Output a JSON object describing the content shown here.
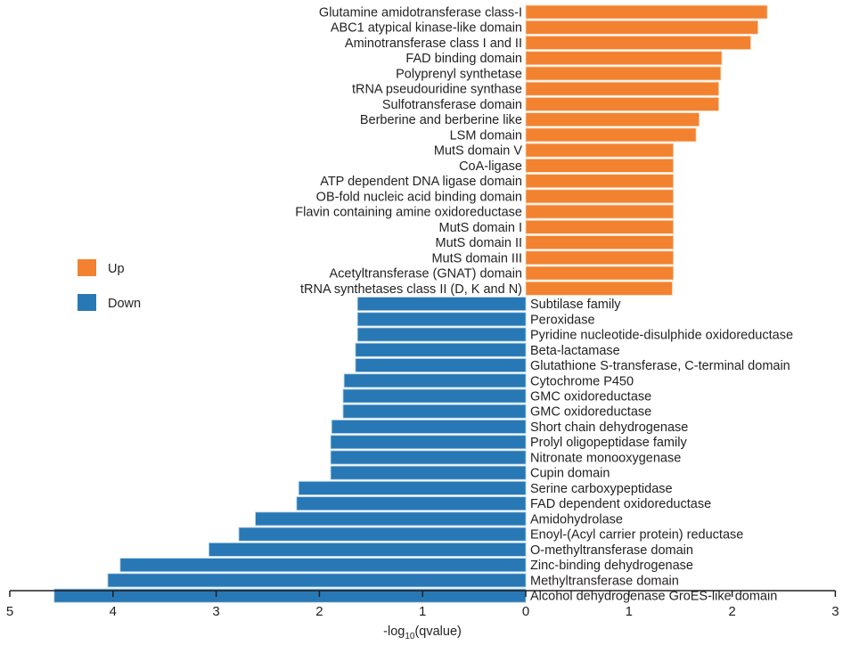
{
  "chart_data": {
    "type": "bar",
    "orientation": "horizontal-diverging",
    "title": "",
    "xlabel": "-log10(qvalue)",
    "xlabel_parts": {
      "prefix": "-log",
      "subscript": "10",
      "suffix": "(qvalue)"
    },
    "ylabel": "",
    "xlim_down": [
      5,
      0
    ],
    "xlim_up": [
      0,
      3
    ],
    "x_ticks_down": [
      "5",
      "4",
      "3",
      "2",
      "1",
      "0"
    ],
    "x_ticks_up": [
      "1",
      "2",
      "3"
    ],
    "grid": false,
    "legend": {
      "placement": "left-middle",
      "entries": [
        {
          "name": "Up",
          "color": "#F28230"
        },
        {
          "name": "Down",
          "color": "#2878B5"
        }
      ]
    },
    "series": [
      {
        "name": "Up",
        "color": "#F28230",
        "categories": [
          "Glutamine amidotransferase class-I",
          "ABC1 atypical kinase-like domain",
          "Aminotransferase class I and II",
          "FAD binding domain",
          "Polyprenyl synthetase",
          "tRNA pseudouridine synthase",
          "Sulfotransferase domain",
          "Berberine and berberine like",
          "LSM domain",
          "MutS domain V",
          "CoA-ligase",
          "ATP dependent DNA ligase domain",
          "OB-fold nucleic acid binding domain",
          "Flavin containing amine oxidoreductase",
          "MutS domain I",
          "MutS domain II",
          "MutS domain III",
          "Acetyltransferase (GNAT) domain",
          "tRNA synthetases class II (D, K and N)"
        ],
        "values": [
          2.34,
          2.25,
          2.18,
          1.9,
          1.89,
          1.87,
          1.87,
          1.68,
          1.65,
          1.43,
          1.43,
          1.43,
          1.43,
          1.43,
          1.43,
          1.43,
          1.43,
          1.43,
          1.42
        ]
      },
      {
        "name": "Down",
        "color": "#2878B5",
        "categories": [
          "Subtilase family",
          "Peroxidase",
          "Pyridine nucleotide-disulphide oxidoreductase",
          "Beta-lactamase",
          "Glutathione S-transferase, C-terminal domain",
          "Cytochrome P450",
          "GMC oxidoreductase",
          "GMC oxidoreductase",
          "Short chain dehydrogenase",
          "Prolyl oligopeptidase family",
          "Nitronate monooxygenase",
          "Cupin domain",
          "Serine carboxypeptidase",
          "FAD dependent oxidoreductase",
          "Amidohydrolase",
          "Enoyl-(Acyl carrier protein) reductase",
          "O-methyltransferase domain",
          "Zinc-binding dehydrogenase",
          "Methyltransferase domain",
          "Alcohol dehydrogenase GroES-like domain"
        ],
        "values": [
          1.63,
          1.63,
          1.63,
          1.65,
          1.65,
          1.76,
          1.77,
          1.77,
          1.88,
          1.89,
          1.89,
          1.89,
          2.2,
          2.22,
          2.62,
          2.78,
          3.07,
          3.93,
          4.05,
          4.57
        ]
      }
    ]
  }
}
